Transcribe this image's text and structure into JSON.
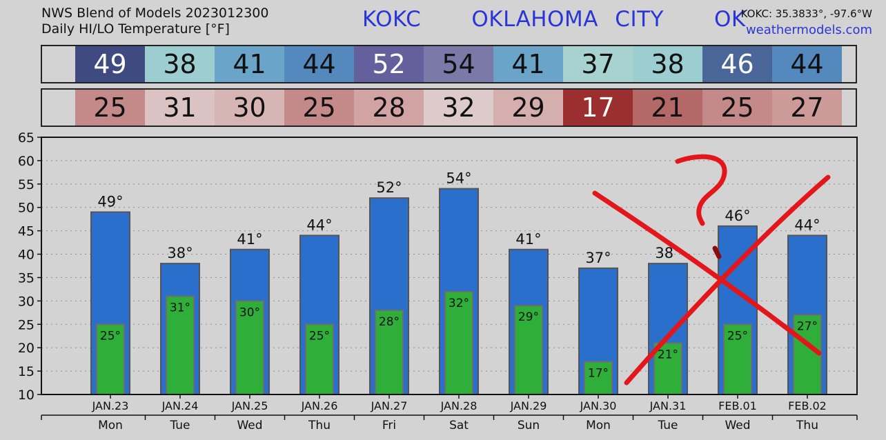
{
  "header": {
    "line1": "NWS Blend of Models 2023012300",
    "line2": "Daily HI/LO Temperature [°F]",
    "station_title": "KOKC   OKLAHOMA CITY   OK",
    "coords": "KOKC: 35.3833°, -97.6°W",
    "site": "weathermodels.com"
  },
  "hi_strip": [
    {
      "value": "49",
      "color": "#3e4a80",
      "text": "#ffffff"
    },
    {
      "value": "38",
      "color": "#9ccdd0",
      "text": "#111111"
    },
    {
      "value": "41",
      "color": "#6aa4c8",
      "text": "#111111"
    },
    {
      "value": "44",
      "color": "#5489bd",
      "text": "#111111"
    },
    {
      "value": "52",
      "color": "#64609e",
      "text": "#ffffff"
    },
    {
      "value": "54",
      "color": "#7a79a8",
      "text": "#111111"
    },
    {
      "value": "41",
      "color": "#6aa4c8",
      "text": "#111111"
    },
    {
      "value": "37",
      "color": "#a8d2cf",
      "text": "#111111"
    },
    {
      "value": "38",
      "color": "#9ccdd0",
      "text": "#111111"
    },
    {
      "value": "46",
      "color": "#4a6598",
      "text": "#ffffff"
    },
    {
      "value": "44",
      "color": "#5489bd",
      "text": "#111111"
    }
  ],
  "lo_strip": [
    {
      "value": "25",
      "color": "#c48a8a",
      "text": "#111111"
    },
    {
      "value": "31",
      "color": "#dcc3c3",
      "text": "#111111"
    },
    {
      "value": "30",
      "color": "#d8b5b5",
      "text": "#111111"
    },
    {
      "value": "25",
      "color": "#c48a8a",
      "text": "#111111"
    },
    {
      "value": "28",
      "color": "#d2a3a3",
      "text": "#111111"
    },
    {
      "value": "32",
      "color": "#ddcaca",
      "text": "#111111"
    },
    {
      "value": "29",
      "color": "#d5aeae",
      "text": "#111111"
    },
    {
      "value": "17",
      "color": "#9b2e2e",
      "text": "#ffffff"
    },
    {
      "value": "21",
      "color": "#b56868",
      "text": "#111111"
    },
    {
      "value": "25",
      "color": "#c48a8a",
      "text": "#111111"
    },
    {
      "value": "27",
      "color": "#cd9a9a",
      "text": "#111111"
    }
  ],
  "chart_data": {
    "type": "bar",
    "categories": [
      "JAN.23",
      "JAN.24",
      "JAN.25",
      "JAN.26",
      "JAN.27",
      "JAN.28",
      "JAN.29",
      "JAN.30",
      "JAN.31",
      "FEB.01",
      "FEB.02"
    ],
    "weekdays": [
      "Mon",
      "Tue",
      "Wed",
      "Thu",
      "Fri",
      "Sat",
      "Sun",
      "Mon",
      "Tue",
      "Wed",
      "Thu"
    ],
    "series": [
      {
        "values": [
          49,
          38,
          41,
          44,
          52,
          54,
          41,
          37,
          38,
          46,
          44
        ],
        "color": "#2a6fcc"
      },
      {
        "values": [
          25,
          31,
          30,
          25,
          28,
          32,
          29,
          17,
          21,
          25,
          27
        ],
        "color": "#2fae3a"
      }
    ],
    "hi_labels": [
      "49°",
      "38°",
      "41°",
      "44°",
      "52°",
      "54°",
      "41°",
      "37°",
      "38°",
      "46°",
      "44°"
    ],
    "lo_labels": [
      "25°",
      "31°",
      "30°",
      "25°",
      "28°",
      "32°",
      "29°",
      "17°",
      "21°",
      "25°",
      "27°"
    ],
    "yticks": [
      "10",
      "15",
      "20",
      "25",
      "30",
      "35",
      "40",
      "45",
      "50",
      "55",
      "60",
      "65"
    ],
    "ylim": [
      10,
      65
    ],
    "grid": true,
    "annotation": {
      "mark": "red-x-and-question-mark",
      "color": "#e3171b"
    }
  }
}
